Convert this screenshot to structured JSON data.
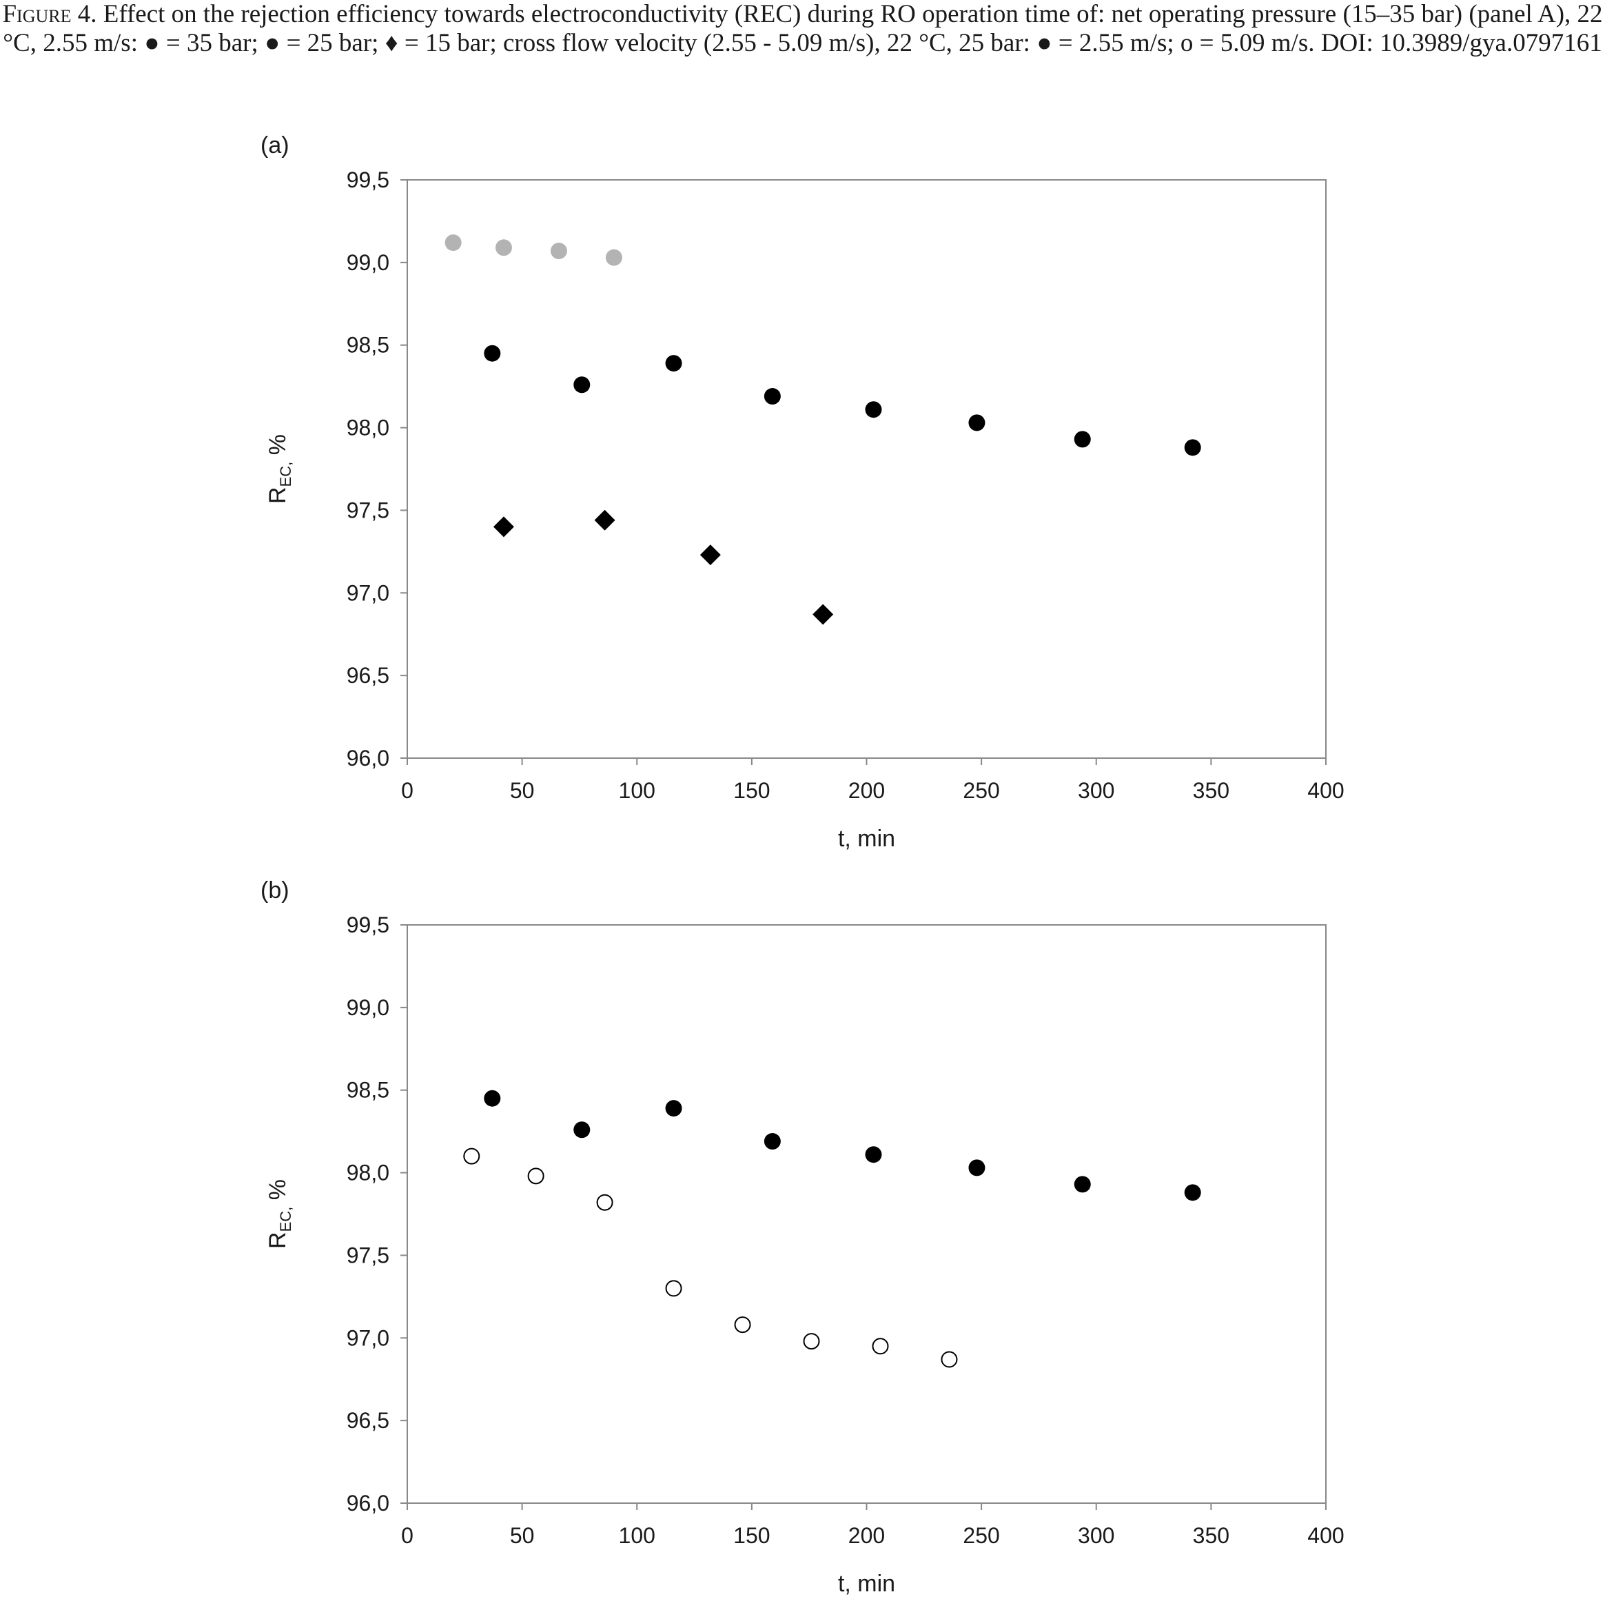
{
  "caption": {
    "label": "Figure 4.",
    "text": "Effect on the rejection efficiency towards electroconductivity (REC) during RO operation time of: net operating pressure (15–35 bar) (panel A), 22 °C, 2.55 m/s: ● = 35 bar; ● = 25 bar; ♦ = 15 bar; cross flow velocity (2.55 - 5.09 m/s), 22 °C, 25 bar: ● = 2.55 m/s; o = 5.09 m/s. DOI: 10.3989/gya.0797161"
  },
  "colors": {
    "series_35bar": "#b3b3b3",
    "series_25bar": "#000000",
    "series_15bar": "#000000",
    "series_509": "#ffffff",
    "axis": "#888888"
  },
  "chart_data": [
    {
      "panel_label": "(a)",
      "type": "scatter",
      "xlabel": "t, min",
      "ylabel": "R",
      "ylabel_sub": "EC,",
      "ylabel_unit": " %",
      "xlim": [
        0,
        400
      ],
      "ylim": [
        96.0,
        99.5
      ],
      "xticks": [
        0,
        50,
        100,
        150,
        200,
        250,
        300,
        350,
        400
      ],
      "yticks": [
        96.0,
        96.5,
        97.0,
        97.5,
        98.0,
        98.5,
        99.0,
        99.5
      ],
      "ytick_labels": [
        "96,0",
        "96,5",
        "97,0",
        "97,5",
        "98,0",
        "98,5",
        "99,0",
        "99,5"
      ],
      "grid": false,
      "series": [
        {
          "marker": "circle",
          "color": "#b3b3b3",
          "x": [
            20,
            42,
            66,
            90
          ],
          "y": [
            99.12,
            99.09,
            99.07,
            99.03
          ]
        },
        {
          "marker": "circle",
          "color": "#000000",
          "x": [
            37,
            76,
            116,
            159,
            203,
            248,
            294,
            342
          ],
          "y": [
            98.45,
            98.26,
            98.39,
            98.19,
            98.11,
            98.03,
            97.93,
            97.88
          ]
        },
        {
          "marker": "diamond",
          "color": "#000000",
          "x": [
            42,
            86,
            132,
            181
          ],
          "y": [
            97.4,
            97.44,
            97.23,
            96.87
          ]
        }
      ]
    },
    {
      "panel_label": "(b)",
      "type": "scatter",
      "xlabel": "t, min",
      "ylabel": "R",
      "ylabel_sub": "EC,",
      "ylabel_unit": " %",
      "xlim": [
        0,
        400
      ],
      "ylim": [
        96.0,
        99.5
      ],
      "xticks": [
        0,
        50,
        100,
        150,
        200,
        250,
        300,
        350,
        400
      ],
      "yticks": [
        96.0,
        96.5,
        97.0,
        97.5,
        98.0,
        98.5,
        99.0,
        99.5
      ],
      "ytick_labels": [
        "96,0",
        "96,5",
        "97,0",
        "97,5",
        "98,0",
        "98,5",
        "99,0",
        "99,5"
      ],
      "grid": false,
      "series": [
        {
          "marker": "circle",
          "color": "#000000",
          "x": [
            37,
            76,
            116,
            159,
            203,
            248,
            294,
            342
          ],
          "y": [
            98.45,
            98.26,
            98.39,
            98.19,
            98.11,
            98.03,
            97.93,
            97.88
          ]
        },
        {
          "marker": "open-circle",
          "color": "#ffffff",
          "x": [
            28,
            56,
            86,
            116,
            146,
            176,
            206,
            236
          ],
          "y": [
            98.1,
            97.98,
            97.82,
            97.3,
            97.08,
            96.98,
            96.95,
            96.87
          ]
        }
      ]
    }
  ]
}
